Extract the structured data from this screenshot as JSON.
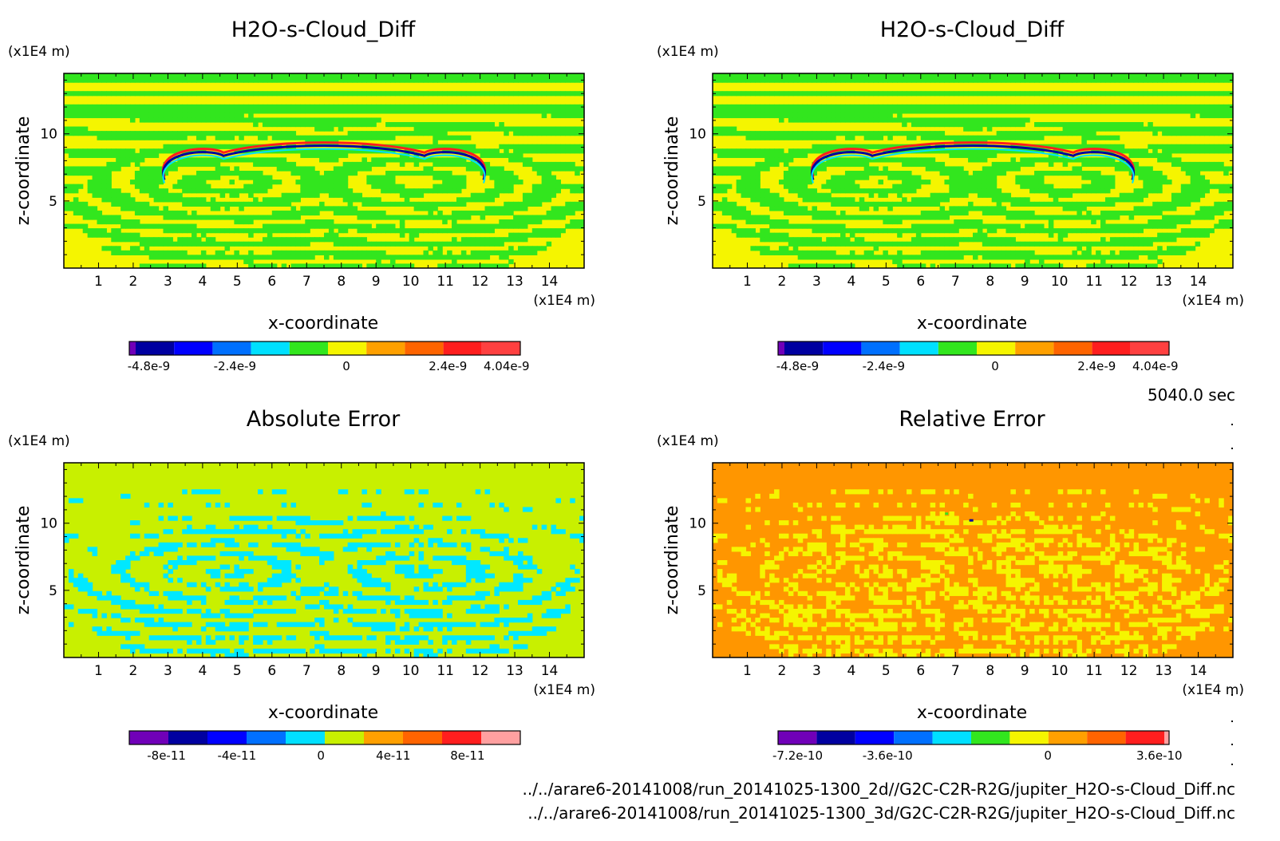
{
  "time_label": "5040.0 sec",
  "footer": {
    "path_2d": "../../arare6-20141008/run_20141025-1300_2d//G2C-C2R-R2G/jupiter_H2O-s-Cloud_Diff.nc",
    "path_3d": "../../arare6-20141008/run_20141025-1300_3d/G2C-C2R-R2G/jupiter_H2O-s-Cloud_Diff.nc"
  },
  "chart_data": [
    {
      "type": "heatmap",
      "title": "H2O-s-Cloud_Diff",
      "xlabel": "x-coordinate",
      "ylabel": "z-coordinate",
      "x_unit": "(x1E4 m)",
      "y_unit": "(x1E4 m)",
      "xlim": [
        0,
        15
      ],
      "ylim": [
        0,
        14.5
      ],
      "xticks": [
        "1",
        "2",
        "3",
        "4",
        "5",
        "6",
        "7",
        "8",
        "9",
        "10",
        "11",
        "12",
        "13",
        "14"
      ],
      "yticks": [
        "5",
        "10"
      ],
      "background_color": "#f5f500",
      "field": "cloud",
      "colorbar": {
        "colors": [
          "#7000b8",
          "#0000a0",
          "#0000ff",
          "#0070ff",
          "#00e0ff",
          "#32e61e",
          "#f5f500",
          "#ffa000",
          "#ff6400",
          "#ff1e1e",
          "#ff4040"
        ],
        "labels": [
          "-4.8e-9",
          "-2.4e-9",
          "0",
          "2.4e-9",
          "4.04e-9"
        ]
      }
    },
    {
      "type": "heatmap",
      "title": "H2O-s-Cloud_Diff",
      "xlabel": "x-coordinate",
      "ylabel": "z-coordinate",
      "x_unit": "(x1E4 m)",
      "y_unit": "(x1E4 m)",
      "xlim": [
        0,
        15
      ],
      "ylim": [
        0,
        14.5
      ],
      "xticks": [
        "1",
        "2",
        "3",
        "4",
        "5",
        "6",
        "7",
        "8",
        "9",
        "10",
        "11",
        "12",
        "13",
        "14"
      ],
      "yticks": [
        "5",
        "10"
      ],
      "background_color": "#f5f500",
      "field": "cloud",
      "colorbar": {
        "colors": [
          "#7000b8",
          "#0000a0",
          "#0000ff",
          "#0070ff",
          "#00e0ff",
          "#32e61e",
          "#f5f500",
          "#ffa000",
          "#ff6400",
          "#ff1e1e",
          "#ff4040"
        ],
        "labels": [
          "-4.8e-9",
          "-2.4e-9",
          "0",
          "2.4e-9",
          "4.04e-9"
        ]
      }
    },
    {
      "type": "heatmap",
      "title": "Absolute Error",
      "xlabel": "x-coordinate",
      "ylabel": "z-coordinate",
      "x_unit": "(x1E4 m)",
      "y_unit": "(x1E4 m)",
      "xlim": [
        0,
        15
      ],
      "ylim": [
        0,
        14.5
      ],
      "xticks": [
        "1",
        "2",
        "3",
        "4",
        "5",
        "6",
        "7",
        "8",
        "9",
        "10",
        "11",
        "12",
        "13",
        "14"
      ],
      "yticks": [
        "5",
        "10"
      ],
      "background_color": "#c8f000",
      "field": "abs",
      "colorbar": {
        "colors": [
          "#7000b8",
          "#0000a0",
          "#0000ff",
          "#0070ff",
          "#00e0ff",
          "#c8f000",
          "#ffa000",
          "#ff6400",
          "#ff1e1e",
          "#ffa0a0"
        ],
        "labels": [
          "-8e-11",
          "-4e-11",
          "0",
          "4e-11",
          "8e-11"
        ]
      }
    },
    {
      "type": "heatmap",
      "title": "Relative Error",
      "xlabel": "x-coordinate",
      "ylabel": "z-coordinate",
      "x_unit": "(x1E4 m)",
      "y_unit": "(x1E4 m)",
      "xlim": [
        0,
        15
      ],
      "ylim": [
        0,
        14.5
      ],
      "xticks": [
        "1",
        "2",
        "3",
        "4",
        "5",
        "6",
        "7",
        "8",
        "9",
        "10",
        "11",
        "12",
        "13",
        "14"
      ],
      "yticks": [
        "5",
        "10"
      ],
      "background_color": "#ff9600",
      "field": "rel",
      "colorbar": {
        "colors": [
          "#7000b8",
          "#0000a0",
          "#0000ff",
          "#0070ff",
          "#00e0ff",
          "#32e61e",
          "#f5f500",
          "#ffa000",
          "#ff6400",
          "#ff1e1e",
          "#ffa0a0"
        ],
        "labels": [
          "-7.2e-10",
          "-3.6e-10",
          "0",
          "3.6e-10"
        ]
      }
    }
  ]
}
